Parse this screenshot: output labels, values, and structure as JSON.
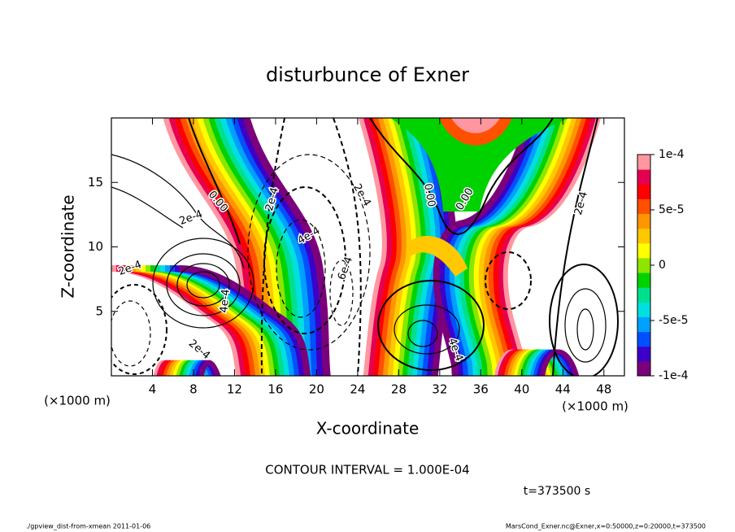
{
  "chart_data": {
    "type": "contour",
    "title": "disturbunce of Exner",
    "xlabel": "X-coordinate",
    "ylabel": "Z-coordinate",
    "axis_unit": "(×1000 m)",
    "xlim": [
      0,
      50
    ],
    "xticks": [
      4,
      8,
      12,
      16,
      20,
      24,
      28,
      32,
      36,
      40,
      44,
      48
    ],
    "ylim": [
      0,
      20
    ],
    "yticks": [
      5,
      10,
      15
    ],
    "colorbar_lim": [
      -0.0001,
      0.0001
    ],
    "colorbar_ticks": [
      {
        "value": 0.0001,
        "label": "1e-4"
      },
      {
        "value": 5e-05,
        "label": "5e-5"
      },
      0,
      {
        "value": -5e-05,
        "label": "-5e-5"
      },
      {
        "value": -0.0001,
        "label": "-1e-4"
      }
    ],
    "colormap": [
      "#7b007b",
      "#3c00c8",
      "#0050ff",
      "#00a0ff",
      "#00e0e0",
      "#00e08c",
      "#00d200",
      "#8ce600",
      "#ffff00",
      "#ffc800",
      "#ff9600",
      "#ff5000",
      "#ff0000",
      "#e60050",
      "#ff96a0"
    ],
    "contour_labels": [
      "2e-4",
      "0.00",
      "2e-4",
      "4e-4",
      "6e-4",
      "2e-4",
      "0.00",
      "0.00",
      "2e-4",
      "4e-4",
      "2e-4",
      "4e-4",
      "2e-4"
    ],
    "contour_interval": "CONTOUR INTERVAL = 1.000E-04",
    "time": "t=373500 s",
    "footer_left": "./gpview_dist-from-xmean  2011-01-06",
    "footer_right": "MarsCond_Exner.nc@Exner,x=0:50000,z=0:20000,t=373500"
  }
}
